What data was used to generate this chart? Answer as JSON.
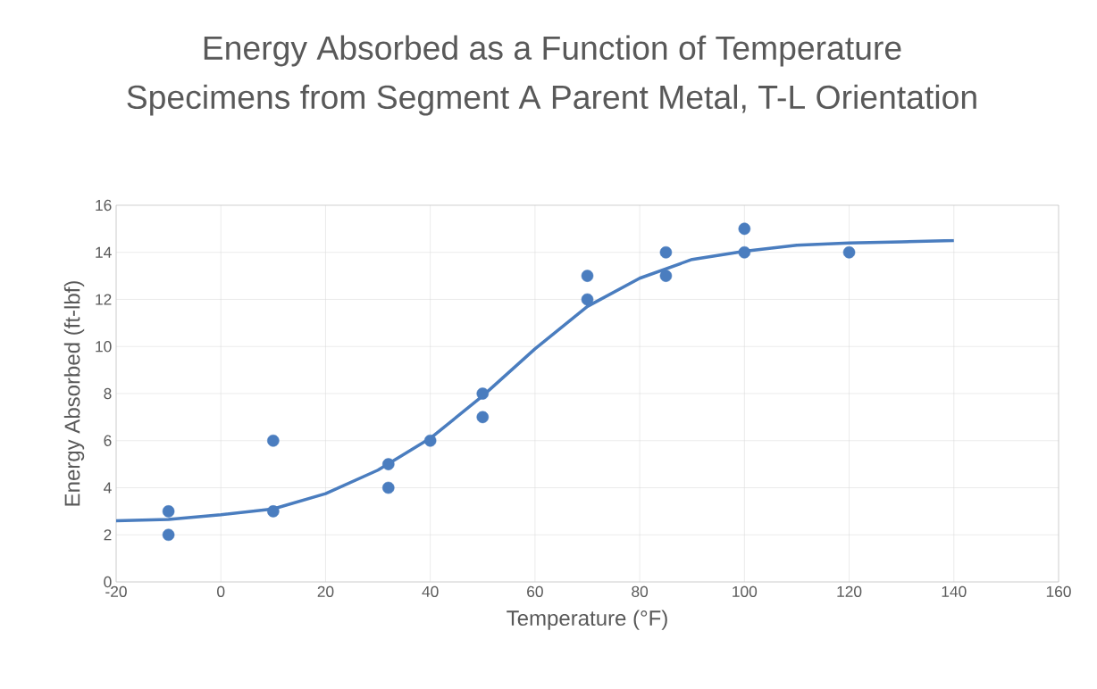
{
  "chart_data": {
    "type": "scatter",
    "title": "Energy Absorbed as a Function of Temperature",
    "subtitle": "Specimens from Segment A Parent Metal, T-L Orientation",
    "xlabel": "Temperature (°F)",
    "ylabel": "Energy Absorbed (ft-lbf)",
    "xlim": [
      -20,
      160
    ],
    "xticks": [
      -20,
      0,
      20,
      40,
      60,
      80,
      100,
      120,
      140,
      160
    ],
    "ylim": [
      0,
      16
    ],
    "yticks": [
      0,
      2,
      4,
      6,
      8,
      10,
      12,
      14,
      16
    ],
    "grid": true,
    "series": [
      {
        "marker": "circle",
        "color": "#4a7dbf",
        "x": [
          -10,
          -10,
          10,
          10,
          32,
          32,
          40,
          50,
          50,
          70,
          70,
          85,
          85,
          100,
          100,
          120
        ],
        "values": [
          3,
          2,
          6,
          3,
          5,
          4,
          6,
          8,
          7,
          13,
          12,
          14,
          13,
          15,
          14,
          14
        ]
      },
      {
        "type": "line",
        "marker": "none",
        "line_style": "solid",
        "color": "#4a7dbf",
        "x": [
          -20,
          -10,
          0,
          10,
          20,
          30,
          40,
          50,
          60,
          70,
          80,
          90,
          100,
          110,
          120,
          130,
          140
        ],
        "values": [
          2.6,
          2.65,
          2.85,
          3.1,
          3.75,
          4.75,
          6.1,
          7.9,
          9.9,
          11.7,
          12.9,
          13.7,
          14.05,
          14.3,
          14.4,
          14.45,
          14.5
        ]
      }
    ]
  }
}
